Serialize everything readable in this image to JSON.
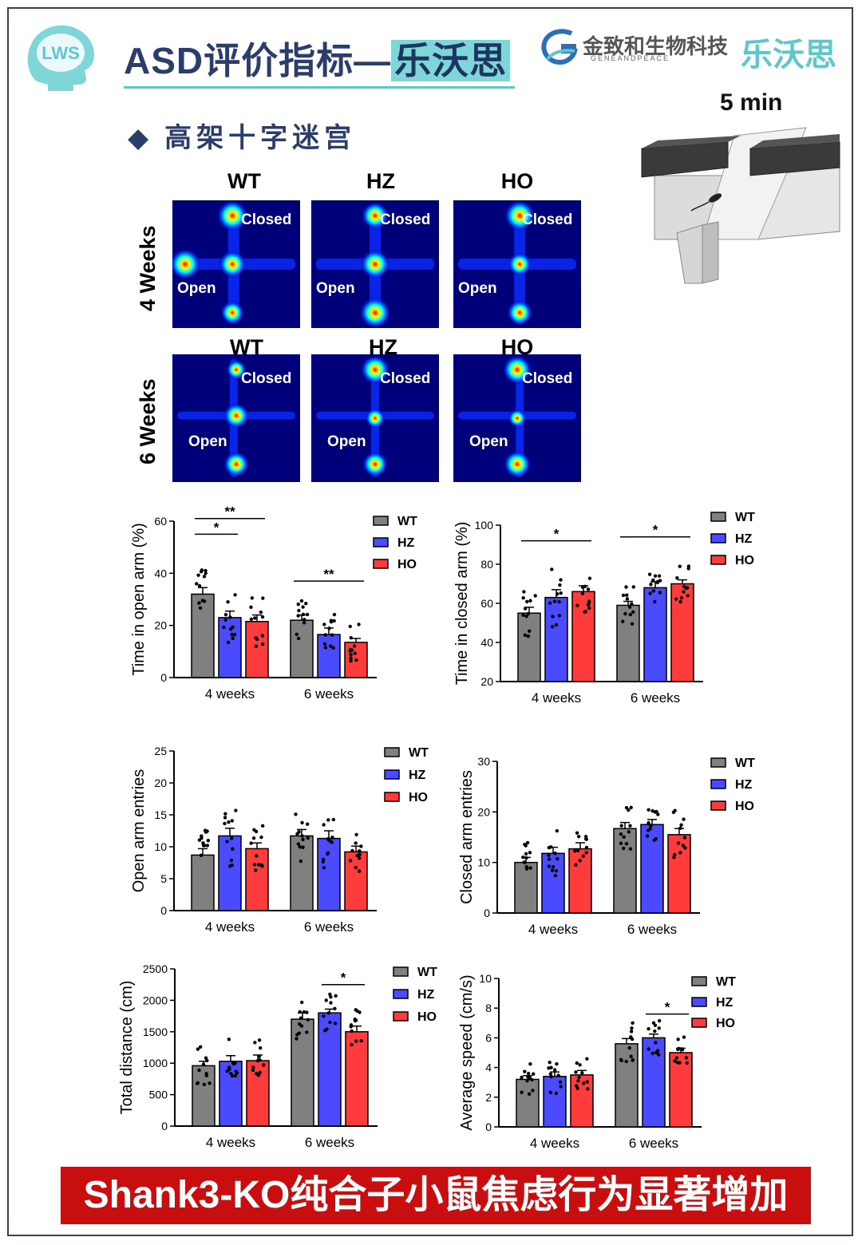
{
  "header": {
    "title_main": "ASD评价指标—",
    "title_highlight": "乐沃思",
    "company": "金致和生物科技",
    "company_sub": "GENEANDPEACE",
    "brand": "乐沃思",
    "logo_text": "LWS"
  },
  "section": {
    "title": "高架十字迷宫",
    "bullet": "◆"
  },
  "apparatus": {
    "duration": "5 min"
  },
  "heatmaps": {
    "columns": [
      "WT",
      "HZ",
      "HO"
    ],
    "rows": [
      "4 Weeks",
      "6 Weeks"
    ],
    "closed_label": "Closed",
    "open_label": "Open"
  },
  "chart_data": [
    {
      "type": "bar",
      "ylabel": "Time in open arm (%)",
      "ylim": [
        0,
        60
      ],
      "yticks": [
        0,
        20,
        40,
        60
      ],
      "categories": [
        "4 weeks",
        "6 weeks"
      ],
      "series": [
        {
          "name": "WT",
          "values": [
            32,
            22
          ]
        },
        {
          "name": "HZ",
          "values": [
            23,
            16.5
          ]
        },
        {
          "name": "HO",
          "values": [
            21.5,
            13.5
          ]
        }
      ],
      "errors": [
        [
          2.5,
          2
        ],
        [
          2.5,
          2.5
        ],
        [
          2.5,
          1.5
        ]
      ],
      "significance": [
        {
          "label": "*",
          "group": 0,
          "from": 0,
          "to": 1,
          "y": 55
        },
        {
          "label": "**",
          "group": 0,
          "from": 0,
          "to": 2,
          "y": 61
        },
        {
          "label": "**",
          "group": 1,
          "from": 0,
          "to": 2,
          "y": 37
        }
      ],
      "legend": "right"
    },
    {
      "type": "bar",
      "ylabel": "Time in closed arm (%)",
      "ylim": [
        20,
        100
      ],
      "yticks": [
        20,
        40,
        60,
        80,
        100
      ],
      "categories": [
        "4 weeks",
        "6 weeks"
      ],
      "series": [
        {
          "name": "WT",
          "values": [
            55,
            59
          ]
        },
        {
          "name": "HZ",
          "values": [
            63,
            68
          ]
        },
        {
          "name": "HO",
          "values": [
            66,
            70
          ]
        }
      ],
      "errors": [
        [
          3,
          2
        ],
        [
          4,
          3
        ],
        [
          3,
          2
        ]
      ],
      "significance": [
        {
          "label": "*",
          "group": 0,
          "from": 0,
          "to": 2,
          "y": 92
        },
        {
          "label": "*",
          "group": 1,
          "from": 0,
          "to": 2,
          "y": 94
        }
      ],
      "legend": "right"
    },
    {
      "type": "bar",
      "ylabel": "Open arm entries",
      "ylim": [
        0,
        25
      ],
      "yticks": [
        0,
        5,
        10,
        15,
        20,
        25
      ],
      "categories": [
        "4 weeks",
        "6 weeks"
      ],
      "series": [
        {
          "name": "WT",
          "values": [
            8.7,
            11.7
          ]
        },
        {
          "name": "HZ",
          "values": [
            11.7,
            11.3
          ]
        },
        {
          "name": "HO",
          "values": [
            9.7,
            9.2
          ]
        }
      ],
      "errors": [
        [
          1,
          1
        ],
        [
          1.2,
          1.2
        ],
        [
          0.9,
          0.9
        ]
      ],
      "significance": [],
      "legend": "right"
    },
    {
      "type": "bar",
      "ylabel": "Closed arm entries",
      "ylim": [
        0,
        30
      ],
      "yticks": [
        0,
        10,
        20,
        30
      ],
      "categories": [
        "4 weeks",
        "6 weeks"
      ],
      "series": [
        {
          "name": "WT",
          "values": [
            10,
            16.7
          ]
        },
        {
          "name": "HZ",
          "values": [
            11.8,
            17.5
          ]
        },
        {
          "name": "HO",
          "values": [
            12.7,
            15.5
          ]
        }
      ],
      "errors": [
        [
          1,
          1.2
        ],
        [
          1.2,
          1
        ],
        [
          1.2,
          1.2
        ]
      ],
      "significance": [],
      "legend": "right"
    },
    {
      "type": "bar",
      "ylabel": "Total distance (cm)",
      "ylim": [
        0,
        2500
      ],
      "yticks": [
        0,
        500,
        1000,
        1500,
        2000,
        2500
      ],
      "categories": [
        "4 weeks",
        "6 weeks"
      ],
      "series": [
        {
          "name": "WT",
          "values": [
            960,
            1700
          ]
        },
        {
          "name": "HZ",
          "values": [
            1030,
            1800
          ]
        },
        {
          "name": "HO",
          "values": [
            1040,
            1500
          ]
        }
      ],
      "errors": [
        [
          70,
          100
        ],
        [
          90,
          60
        ],
        [
          90,
          90
        ]
      ],
      "significance": [
        {
          "label": "*",
          "group": 1,
          "from": 1,
          "to": 2,
          "y": 2250
        }
      ],
      "legend": "right"
    },
    {
      "type": "bar",
      "ylabel": "Average speed (cm/s)",
      "ylim": [
        0,
        10
      ],
      "yticks": [
        0,
        2,
        4,
        6,
        8,
        10
      ],
      "categories": [
        "4 weeks",
        "6 weeks"
      ],
      "series": [
        {
          "name": "WT",
          "values": [
            3.2,
            5.6
          ]
        },
        {
          "name": "HZ",
          "values": [
            3.4,
            6.0
          ]
        },
        {
          "name": "HO",
          "values": [
            3.5,
            5.0
          ]
        }
      ],
      "errors": [
        [
          0.25,
          0.35
        ],
        [
          0.3,
          0.25
        ],
        [
          0.3,
          0.3
        ]
      ],
      "significance": [
        {
          "label": "*",
          "group": 1,
          "from": 1,
          "to": 2,
          "y": 7.6
        }
      ],
      "legend": "right"
    }
  ],
  "colors": {
    "WT": "#808080",
    "HZ": "#4a4aff",
    "HO": "#ff3b3b",
    "title": "#2a3d6b",
    "accent": "#5fc7cc",
    "banner": "#c80e0e"
  },
  "banner": {
    "text": "Shank3-KO纯合子小鼠焦虑行为显著增加"
  }
}
